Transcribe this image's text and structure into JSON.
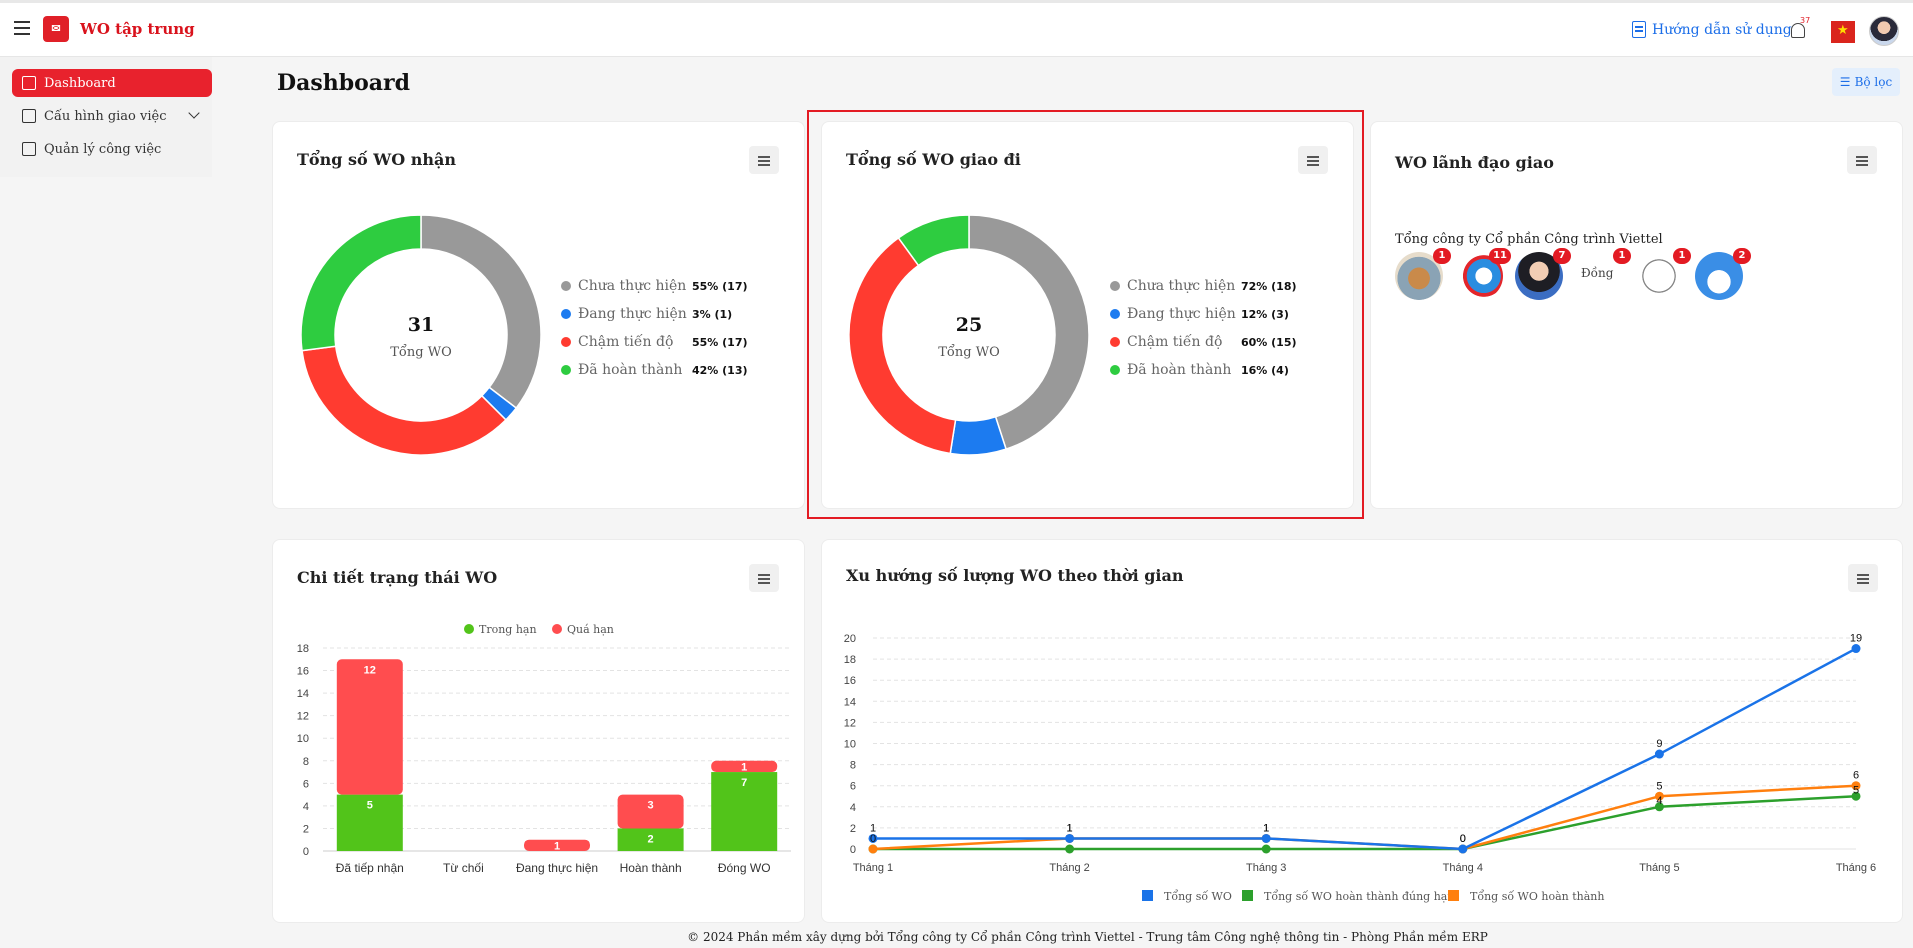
{
  "header": {
    "app_title": "WO tập trung",
    "logo_icon": "viettel-logo-icon",
    "guide_label": "Hướng dẫn sử dụng",
    "notification_count": "37"
  },
  "sidebar": {
    "items": [
      {
        "label": "Dashboard",
        "icon": "grid-icon"
      },
      {
        "label": "Cấu hình giao việc",
        "icon": "config-icon"
      },
      {
        "label": "Quản lý công việc",
        "icon": "briefcase-icon"
      }
    ]
  },
  "main": {
    "title": "Dashboard",
    "filter_label": "Bộ lọc"
  },
  "cards": {
    "received": {
      "title": "Tổng số WO nhận",
      "total": "31",
      "total_label": "Tổng WO",
      "legend": [
        {
          "label": "Chưa thực hiện",
          "value": "55% (17)",
          "color": "#999999"
        },
        {
          "label": "Đang thực hiện",
          "value": "3% (1)",
          "color": "#1c7bf0"
        },
        {
          "label": "Chậm tiến độ",
          "value": "55% (17)",
          "color": "#ff3b30"
        },
        {
          "label": "Đã hoàn thành",
          "value": "42% (13)",
          "color": "#2ecc40"
        }
      ]
    },
    "assigned": {
      "title": "Tổng số WO giao đi",
      "total": "25",
      "total_label": "Tổng WO",
      "legend": [
        {
          "label": "Chưa thực hiện",
          "value": "72% (18)",
          "color": "#999999"
        },
        {
          "label": "Đang thực hiện",
          "value": "12% (3)",
          "color": "#1c7bf0"
        },
        {
          "label": "Chậm tiến độ",
          "value": "60% (15)",
          "color": "#ff3b30"
        },
        {
          "label": "Đã hoàn thành",
          "value": "16% (4)",
          "color": "#2ecc40"
        }
      ]
    },
    "leaders": {
      "title": "WO lãnh đạo giao",
      "company": "Tổng công ty Cổ phần Công trình Viettel",
      "avatars": [
        {
          "badge": "1"
        },
        {
          "badge": "11"
        },
        {
          "badge": "7"
        },
        {
          "badge": "1",
          "text": "Đồng"
        },
        {
          "badge": "1"
        },
        {
          "badge": "2"
        }
      ]
    },
    "status_detail": {
      "title": "Chi tiết trạng thái WO"
    },
    "trend": {
      "title": "Xu hướng số lượng WO theo thời gian"
    }
  },
  "chart_data": [
    {
      "type": "pie",
      "categories": [
        "Chưa thực hiện",
        "Đang thực hiện",
        "Chậm tiến độ",
        "Đã hoàn thành"
      ],
      "values": [
        17,
        1,
        17,
        13
      ]
    },
    {
      "type": "pie",
      "categories": [
        "Chưa thực hiện",
        "Đang thực hiện",
        "Chậm tiến độ",
        "Đã hoàn thành"
      ],
      "values": [
        18,
        3,
        15,
        4
      ]
    },
    {
      "type": "bar",
      "categories": [
        "Đã tiếp nhận",
        "Từ chối",
        "Đang thực hiện",
        "Hoàn thành",
        "Đóng WO"
      ],
      "series": [
        {
          "name": "Trong hạn",
          "values": [
            5,
            0,
            0,
            2,
            7
          ],
          "color": "#52c41a"
        },
        {
          "name": "Quá hạn",
          "values": [
            12,
            0,
            1,
            3,
            1
          ],
          "color": "#ff4d4f"
        }
      ],
      "ylim": [
        0,
        18
      ],
      "yticks": [
        0,
        2,
        4,
        6,
        8,
        10,
        12,
        14,
        16,
        18
      ],
      "legend": "top"
    },
    {
      "type": "line",
      "categories": [
        "Tháng 1",
        "Tháng 2",
        "Tháng 3",
        "Tháng 4",
        "Tháng 5",
        "Tháng 6"
      ],
      "series": [
        {
          "name": "Tổng số WO",
          "values": [
            1,
            1,
            1,
            0,
            9,
            19
          ],
          "color": "#1a73e8"
        },
        {
          "name": "Tổng số WO hoàn thành đúng hạn",
          "values": [
            0,
            0,
            0,
            0,
            4,
            5
          ],
          "color": "#2ca02c"
        },
        {
          "name": "Tổng số WO hoàn thành",
          "values": [
            0,
            1,
            1,
            0,
            5,
            6
          ],
          "color": "#ff7f0e"
        }
      ],
      "ylim": [
        0,
        20
      ],
      "yticks": [
        0,
        2,
        4,
        6,
        8,
        10,
        12,
        14,
        16,
        18,
        20
      ],
      "legend": "bottom"
    }
  ],
  "footer": {
    "text": "© 2024 Phần mềm xây dựng bởi Tổng công ty Cổ phần Công trình Viettel - Trung tâm Công nghệ thông tin - Phòng Phần mềm ERP"
  }
}
